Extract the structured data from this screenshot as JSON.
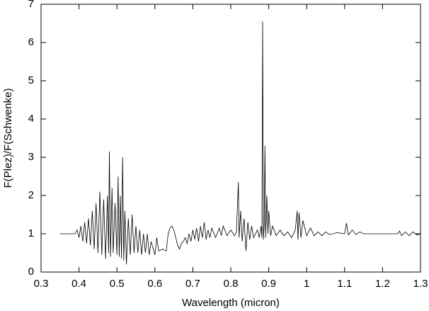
{
  "chart_data": {
    "type": "line",
    "xlabel": "Wavelength (micron)",
    "ylabel": "F(Plez)/F(Schwenke)",
    "x": [
      0.35,
      0.39,
      0.395,
      0.4,
      0.405,
      0.41,
      0.415,
      0.42,
      0.425,
      0.43,
      0.435,
      0.44,
      0.445,
      0.45,
      0.455,
      0.46,
      0.465,
      0.47,
      0.475,
      0.478,
      0.48,
      0.483,
      0.487,
      0.49,
      0.495,
      0.5,
      0.503,
      0.506,
      0.509,
      0.512,
      0.515,
      0.518,
      0.521,
      0.525,
      0.53,
      0.535,
      0.54,
      0.545,
      0.55,
      0.555,
      0.56,
      0.565,
      0.57,
      0.575,
      0.58,
      0.585,
      0.59,
      0.6,
      0.605,
      0.61,
      0.62,
      0.63,
      0.635,
      0.64,
      0.645,
      0.65,
      0.655,
      0.66,
      0.665,
      0.67,
      0.675,
      0.68,
      0.685,
      0.69,
      0.695,
      0.7,
      0.705,
      0.71,
      0.715,
      0.72,
      0.725,
      0.73,
      0.735,
      0.74,
      0.745,
      0.75,
      0.76,
      0.77,
      0.775,
      0.78,
      0.79,
      0.8,
      0.81,
      0.815,
      0.82,
      0.822,
      0.826,
      0.83,
      0.835,
      0.84,
      0.845,
      0.85,
      0.855,
      0.86,
      0.87,
      0.875,
      0.88,
      0.882,
      0.884,
      0.886,
      0.888,
      0.89,
      0.892,
      0.895,
      0.898,
      0.9,
      0.905,
      0.91,
      0.92,
      0.93,
      0.94,
      0.95,
      0.96,
      0.97,
      0.975,
      0.977,
      0.98,
      0.985,
      0.99,
      1.0,
      1.01,
      1.02,
      1.03,
      1.04,
      1.05,
      1.06,
      1.08,
      1.1,
      1.105,
      1.11,
      1.12,
      1.13,
      1.14,
      1.15,
      1.2,
      1.24,
      1.245,
      1.25,
      1.26,
      1.27,
      1.28,
      1.29,
      1.3
    ],
    "series": [
      {
        "color": "#000000",
        "values": [
          1.0,
          1.0,
          1.1,
          0.9,
          1.2,
          0.8,
          1.3,
          0.75,
          1.4,
          0.7,
          1.6,
          0.6,
          1.8,
          0.5,
          2.1,
          0.45,
          1.9,
          0.35,
          2.0,
          0.5,
          3.15,
          0.4,
          2.2,
          0.5,
          1.8,
          0.45,
          2.5,
          0.4,
          2.0,
          0.35,
          3.0,
          0.3,
          1.6,
          0.2,
          1.4,
          0.45,
          1.5,
          0.5,
          1.2,
          0.5,
          1.1,
          0.45,
          1.0,
          0.5,
          1.0,
          0.45,
          0.8,
          0.45,
          0.9,
          0.55,
          0.6,
          0.55,
          1.0,
          1.15,
          1.2,
          1.1,
          0.9,
          0.7,
          0.6,
          0.75,
          0.8,
          0.9,
          0.75,
          1.0,
          0.8,
          1.1,
          0.85,
          1.15,
          0.8,
          1.2,
          0.9,
          1.3,
          0.85,
          1.1,
          0.9,
          1.15,
          0.9,
          1.15,
          0.95,
          1.2,
          0.95,
          1.1,
          0.95,
          1.05,
          2.35,
          0.9,
          1.6,
          0.8,
          1.4,
          0.55,
          1.3,
          0.85,
          1.2,
          0.9,
          1.1,
          0.9,
          1.2,
          0.9,
          6.55,
          0.85,
          1.2,
          3.3,
          0.9,
          2.0,
          1.0,
          1.6,
          0.95,
          1.2,
          0.95,
          1.1,
          0.95,
          1.05,
          0.9,
          1.1,
          1.6,
          0.85,
          1.55,
          0.9,
          1.35,
          0.95,
          1.15,
          0.95,
          1.05,
          0.95,
          1.05,
          0.98,
          1.03,
          1.0,
          1.28,
          0.97,
          1.1,
          0.98,
          1.05,
          1.0,
          1.0,
          1.0,
          1.07,
          0.95,
          1.05,
          0.95,
          1.05,
          0.97,
          1.0
        ]
      }
    ],
    "xlim": [
      0.3,
      1.3
    ],
    "xticks": [
      0.3,
      0.4,
      0.5,
      0.6,
      0.7,
      0.8,
      0.9,
      1,
      1.1,
      1.2,
      1.3
    ],
    "ylim": [
      0,
      7
    ],
    "yticks": [
      0,
      1,
      2,
      3,
      4,
      5,
      6,
      7
    ]
  }
}
